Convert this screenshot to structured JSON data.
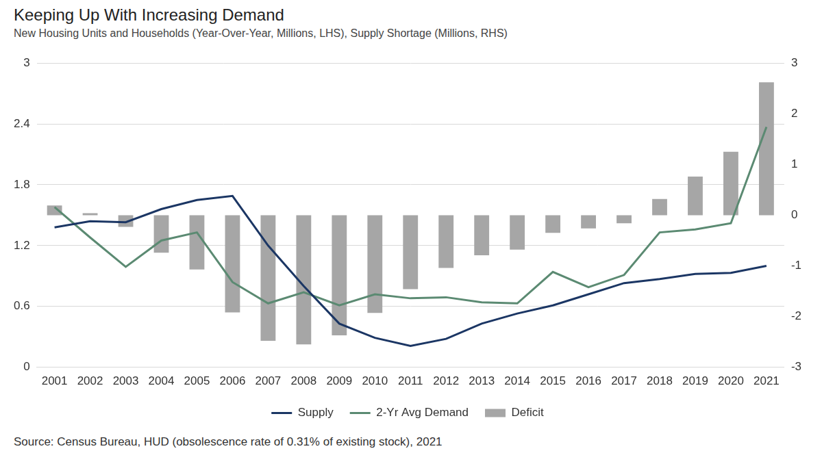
{
  "chart_data": {
    "type": "bar",
    "title": "Keeping Up With Increasing Demand",
    "subtitle": "New Housing Units and Households (Year-Over-Year, Millions, LHS), Supply Shortage (Millions, RHS)",
    "source": "Source: Census Bureau, HUD (obsolescence rate of 0.31% of existing stock), 2021",
    "categories": [
      "2001",
      "2002",
      "2003",
      "2004",
      "2005",
      "2006",
      "2007",
      "2008",
      "2009",
      "2010",
      "2011",
      "2012",
      "2013",
      "2014",
      "2015",
      "2016",
      "2017",
      "2018",
      "2019",
      "2020",
      "2021"
    ],
    "series": [
      {
        "name": "Deficit",
        "type": "bar",
        "axis": "y2",
        "color": "#a6a6a6",
        "values": [
          0.19,
          0.04,
          -0.23,
          -0.74,
          -1.07,
          -1.92,
          -2.48,
          -2.55,
          -2.37,
          -1.93,
          -1.46,
          -1.04,
          -0.79,
          -0.68,
          -0.35,
          -0.26,
          -0.16,
          0.32,
          0.76,
          1.25,
          2.62
        ]
      },
      {
        "name": "Supply",
        "type": "line",
        "color": "#1b3664",
        "marker": "none",
        "line_style": "solid",
        "values": [
          1.38,
          1.44,
          1.43,
          1.56,
          1.65,
          1.69,
          1.2,
          0.8,
          0.43,
          0.29,
          0.21,
          0.28,
          0.43,
          0.53,
          0.61,
          0.72,
          0.83,
          0.87,
          0.92,
          0.93,
          1.0
        ]
      },
      {
        "name": "2-Yr Avg Demand",
        "type": "line",
        "color": "#5b8a72",
        "marker": "none",
        "line_style": "solid",
        "values": [
          1.58,
          1.28,
          0.99,
          1.25,
          1.33,
          0.84,
          0.63,
          0.74,
          0.61,
          0.72,
          0.68,
          0.69,
          0.64,
          0.63,
          0.94,
          0.79,
          0.91,
          1.33,
          1.36,
          1.42,
          2.37
        ]
      }
    ],
    "ylim": [
      0,
      3
    ],
    "yticks": [
      0,
      0.6,
      1.2,
      1.8,
      2.4,
      3
    ],
    "y2lim": [
      -3,
      3
    ],
    "y2ticks": [
      -3,
      -2,
      -1,
      0,
      1,
      2,
      3
    ],
    "grid": true,
    "legend": "bottom"
  }
}
